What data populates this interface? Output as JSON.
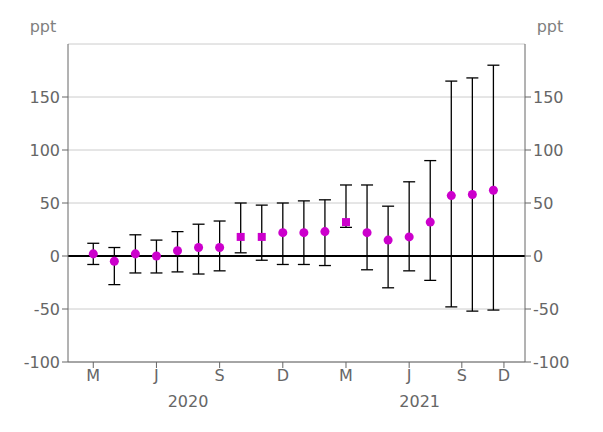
{
  "chart_data": {
    "type": "scatter",
    "ylabel": "ppt",
    "y2label": "ppt",
    "xlim": [
      -0.2,
      21.5
    ],
    "xticks": [
      {
        "value": 1,
        "label": "M"
      },
      {
        "value": 4,
        "label": "J"
      },
      {
        "value": 7,
        "label": "S"
      },
      {
        "value": 10,
        "label": "D"
      },
      {
        "value": 13,
        "label": "M"
      },
      {
        "value": 16,
        "label": "J"
      },
      {
        "value": 18.5,
        "label": "S"
      },
      {
        "value": 20.5,
        "label": "D"
      }
    ],
    "ylim": [
      -100,
      200
    ],
    "yticks": [
      -100,
      -50,
      0,
      50,
      100,
      150
    ],
    "y2lim": [
      -100,
      200
    ],
    "y2ticks": [
      -100,
      -50,
      0,
      50,
      100,
      150
    ],
    "grid": "y",
    "annotations": [
      {
        "text": "2020",
        "x": 5.5
      },
      {
        "text": "2021",
        "x": 16.5
      }
    ],
    "series": [
      {
        "marker": "circle",
        "color": "#cc00cc",
        "x": [
          1,
          2,
          3,
          4,
          5,
          6,
          7,
          10,
          11,
          12,
          14,
          15,
          16,
          17,
          18,
          19,
          20
        ],
        "values": [
          2,
          -5,
          2,
          0,
          5,
          8,
          8,
          22,
          22,
          23,
          22,
          15,
          18,
          32,
          57,
          58,
          62
        ],
        "error_low": [
          10,
          22,
          18,
          16,
          20,
          25,
          22,
          30,
          30,
          32,
          35,
          45,
          32,
          55,
          105,
          110,
          113
        ],
        "error_high": [
          10,
          13,
          18,
          15,
          18,
          22,
          25,
          28,
          30,
          30,
          45,
          32,
          52,
          58,
          108,
          110,
          118
        ]
      },
      {
        "marker": "square",
        "color": "#cc00cc",
        "x": [
          8,
          9,
          13
        ],
        "values": [
          18,
          18,
          32
        ],
        "error_low": [
          15,
          22,
          5
        ],
        "error_high": [
          32,
          30,
          35
        ]
      }
    ]
  }
}
